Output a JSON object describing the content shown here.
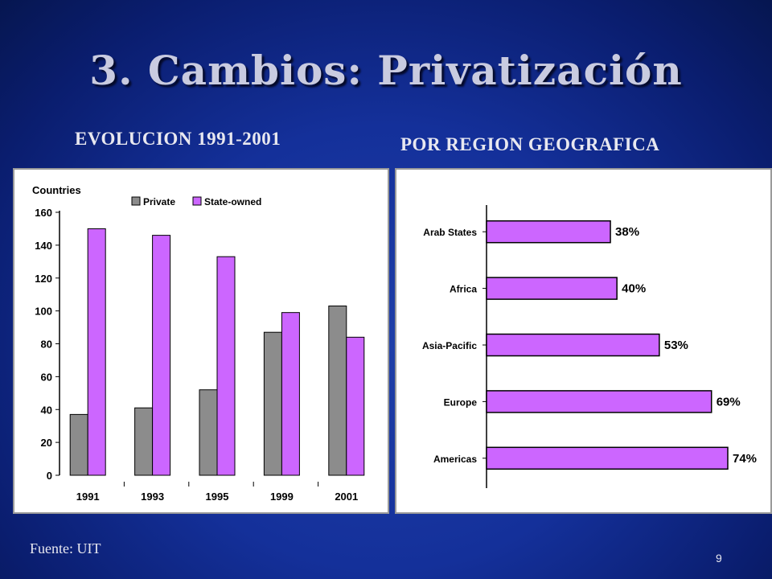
{
  "slide": {
    "title": "3. Cambios: Privatización",
    "subtitle_left": "EVOLUCION 1991-2001",
    "subtitle_right": "POR REGION GEOGRAFICA",
    "footer": "Fuente: UIT",
    "page_number": "9"
  },
  "colors": {
    "private": "#8c8c8c",
    "state_owned": "#cc66ff",
    "bar_outline": "#000000"
  },
  "chart_data": [
    {
      "type": "bar",
      "ylabel": "Countries",
      "categories": [
        "1991",
        "1993",
        "1995",
        "1999",
        "2001"
      ],
      "ylim": [
        0,
        160
      ],
      "yticks": [
        0,
        20,
        40,
        60,
        80,
        100,
        120,
        140,
        160
      ],
      "series": [
        {
          "name": "Private",
          "values": [
            37,
            41,
            52,
            87,
            103
          ]
        },
        {
          "name": "State-owned",
          "values": [
            150,
            146,
            133,
            99,
            84
          ]
        }
      ],
      "legend": "top"
    },
    {
      "type": "bar",
      "orientation": "horizontal",
      "categories": [
        "Arab States",
        "Africa",
        "Asia-Pacific",
        "Europe",
        "Americas"
      ],
      "values": [
        38,
        40,
        53,
        69,
        74
      ],
      "labels": [
        "38%",
        "40%",
        "53%",
        "69%",
        "74%"
      ],
      "xlim": [
        0,
        74
      ]
    }
  ]
}
